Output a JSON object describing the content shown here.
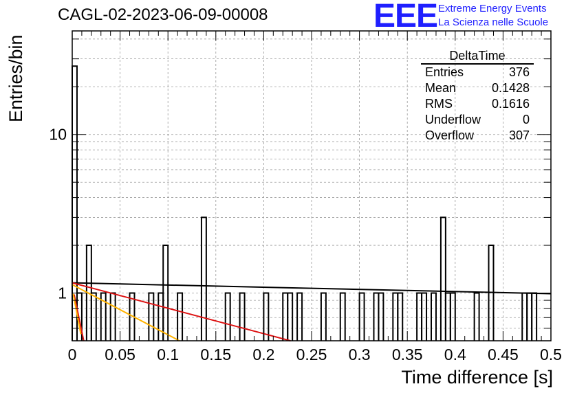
{
  "title": "CAGL-02-2023-06-09-00008",
  "logo": {
    "mark": "EEE",
    "line1": "Extreme Energy Events",
    "line2": "La Scienza nelle Scuole",
    "color": "#1f1fff"
  },
  "stats": {
    "title": "DeltaTime",
    "rows": [
      {
        "label": "Entries",
        "value": "376"
      },
      {
        "label": "Mean",
        "value": "0.1428"
      },
      {
        "label": "RMS",
        "value": "0.1616"
      },
      {
        "label": "Underflow",
        "value": "0"
      },
      {
        "label": "Overflow",
        "value": "307"
      }
    ]
  },
  "chart_data": {
    "type": "histogram",
    "xlabel": "Time difference [s]",
    "ylabel": "Entries/bin",
    "xlim": [
      0,
      0.5
    ],
    "ylim": [
      0.5,
      45
    ],
    "yscale": "log",
    "grid": true,
    "xticks": [
      "0",
      "0.05",
      "0.1",
      "0.15",
      "0.2",
      "0.25",
      "0.3",
      "0.35",
      "0.4",
      "0.45",
      "0.5"
    ],
    "yticks": [
      "1",
      "10"
    ],
    "bin_width": 0.005,
    "bins": [
      {
        "x": 0.0,
        "y": 27
      },
      {
        "x": 0.005,
        "y": 1
      },
      {
        "x": 0.015,
        "y": 2
      },
      {
        "x": 0.02,
        "y": 1
      },
      {
        "x": 0.03,
        "y": 1
      },
      {
        "x": 0.04,
        "y": 1
      },
      {
        "x": 0.06,
        "y": 1
      },
      {
        "x": 0.08,
        "y": 1
      },
      {
        "x": 0.09,
        "y": 1
      },
      {
        "x": 0.095,
        "y": 2
      },
      {
        "x": 0.11,
        "y": 1
      },
      {
        "x": 0.135,
        "y": 3
      },
      {
        "x": 0.16,
        "y": 1
      },
      {
        "x": 0.175,
        "y": 1
      },
      {
        "x": 0.2,
        "y": 1
      },
      {
        "x": 0.22,
        "y": 1
      },
      {
        "x": 0.225,
        "y": 1
      },
      {
        "x": 0.235,
        "y": 1
      },
      {
        "x": 0.26,
        "y": 1
      },
      {
        "x": 0.28,
        "y": 1
      },
      {
        "x": 0.3,
        "y": 1
      },
      {
        "x": 0.315,
        "y": 1
      },
      {
        "x": 0.32,
        "y": 1
      },
      {
        "x": 0.335,
        "y": 1
      },
      {
        "x": 0.34,
        "y": 1
      },
      {
        "x": 0.36,
        "y": 1
      },
      {
        "x": 0.365,
        "y": 1
      },
      {
        "x": 0.375,
        "y": 1
      },
      {
        "x": 0.385,
        "y": 3
      },
      {
        "x": 0.39,
        "y": 1
      },
      {
        "x": 0.395,
        "y": 1
      },
      {
        "x": 0.42,
        "y": 1
      },
      {
        "x": 0.435,
        "y": 2
      },
      {
        "x": 0.47,
        "y": 1
      },
      {
        "x": 0.475,
        "y": 1
      },
      {
        "x": 0.48,
        "y": 1
      }
    ],
    "fit_lines": [
      {
        "color": "#000000",
        "points": [
          [
            0,
            1.16
          ],
          [
            0.5,
            0.99
          ]
        ]
      },
      {
        "color": "#dd1111",
        "points": [
          [
            0,
            1.16
          ],
          [
            0.228,
            0.5
          ]
        ]
      },
      {
        "color": "#ffb300",
        "points": [
          [
            0,
            1.13
          ],
          [
            0.112,
            0.5
          ]
        ]
      },
      {
        "color": "#dd1111",
        "points": [
          [
            0.002,
            0.98
          ],
          [
            0.012,
            0.5
          ]
        ]
      },
      {
        "color": "#ffb300",
        "points": [
          [
            0.001,
            0.99
          ],
          [
            0.009,
            0.55
          ]
        ]
      }
    ]
  }
}
